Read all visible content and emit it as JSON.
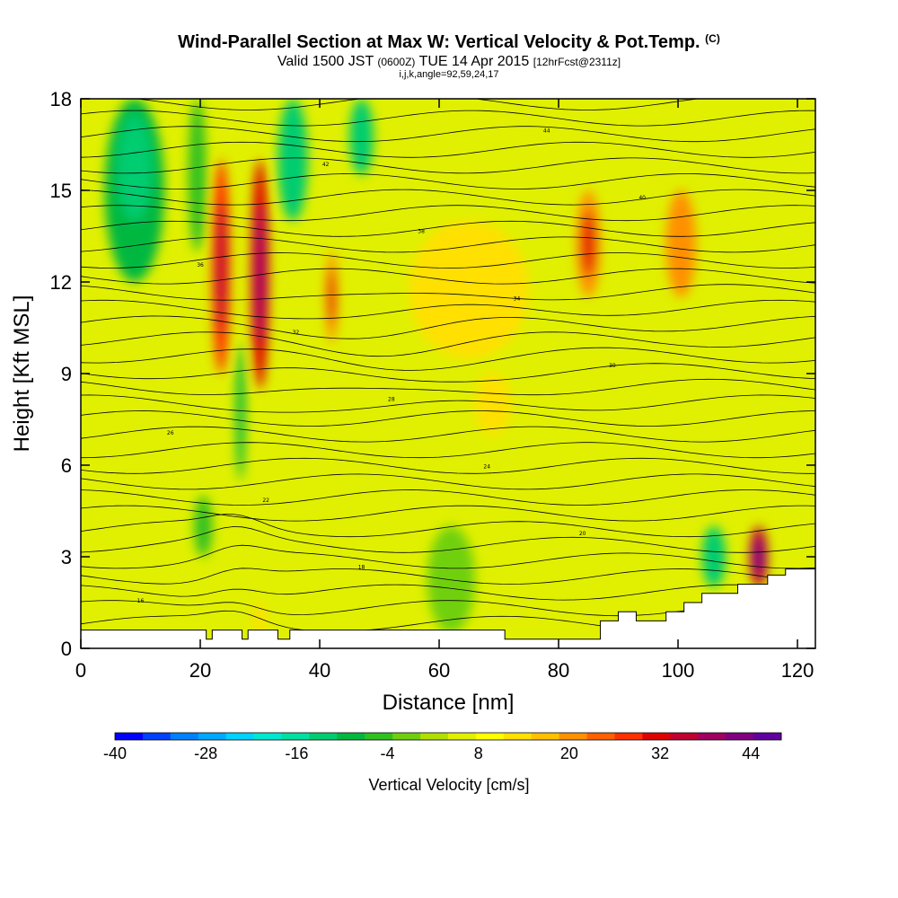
{
  "header": {
    "title": "Wind-Parallel Section at Max W: Vertical Velocity & Pot.Temp.",
    "title_mark": "(C)",
    "valid_prefix": "Valid 1500 JST",
    "valid_utc": "(0600Z)",
    "valid_date": "TUE 14 Apr 2015",
    "forecast": "[12hrFcst@2311z]",
    "indices": "i,j,k,angle=92,59,24,17"
  },
  "chart_data": {
    "type": "heatmap",
    "xlabel": "Distance [nm]",
    "ylabel": "Height [Kft MSL]",
    "xlim": [
      0,
      123
    ],
    "ylim": [
      0,
      18
    ],
    "x_ticks": [
      0,
      20,
      40,
      60,
      80,
      100,
      120
    ],
    "y_ticks": [
      0,
      3,
      6,
      9,
      12,
      15,
      18
    ],
    "background_w": 4,
    "w_cells": [
      {
        "x": [
          4,
          14
        ],
        "y": [
          12,
          18
        ],
        "w": -9
      },
      {
        "x": [
          6,
          12
        ],
        "y": [
          14,
          17.5
        ],
        "w": -13
      },
      {
        "x": [
          18,
          21
        ],
        "y": [
          13,
          18
        ],
        "w": -6
      },
      {
        "x": [
          33,
          38
        ],
        "y": [
          14,
          18
        ],
        "w": -14
      },
      {
        "x": [
          45,
          49
        ],
        "y": [
          15.5,
          18
        ],
        "w": -14
      },
      {
        "x": [
          26,
          27.5
        ],
        "y": [
          5.5,
          10
        ],
        "w": -10
      },
      {
        "x": [
          19,
          22
        ],
        "y": [
          3,
          5
        ],
        "w": -7
      },
      {
        "x": [
          104,
          108
        ],
        "y": [
          2,
          4
        ],
        "w": -12
      },
      {
        "x": [
          22,
          25
        ],
        "y": [
          9,
          16
        ],
        "w": 28
      },
      {
        "x": [
          28.5,
          31.5
        ],
        "y": [
          8.5,
          16
        ],
        "w": 32
      },
      {
        "x": [
          41,
          43
        ],
        "y": [
          10,
          13
        ],
        "w": 22
      },
      {
        "x": [
          55,
          75
        ],
        "y": [
          9.5,
          14
        ],
        "w": 14
      },
      {
        "x": [
          83,
          87
        ],
        "y": [
          11.5,
          15
        ],
        "w": 22
      },
      {
        "x": [
          98,
          103
        ],
        "y": [
          11.5,
          15
        ],
        "w": 20
      },
      {
        "x": [
          112,
          115
        ],
        "y": [
          2,
          4
        ],
        "w": 34
      },
      {
        "x": [
          29,
          31
        ],
        "y": [
          0.5,
          1.5
        ],
        "w": 14
      },
      {
        "x": [
          66,
          72
        ],
        "y": [
          7,
          9
        ],
        "w": 12
      },
      {
        "x": [
          58,
          66
        ],
        "y": [
          0.5,
          4
        ],
        "w": -3
      }
    ],
    "theta_levels": [
      12,
      14,
      16,
      18,
      20,
      22,
      24,
      26,
      28,
      30,
      32,
      34,
      36,
      38,
      40,
      42,
      44
    ],
    "theta_label_values": [
      "16",
      "18",
      "20",
      "22",
      "24",
      "26",
      "28",
      "30",
      "32",
      "34",
      "36",
      "38",
      "40",
      "42",
      "44"
    ],
    "terrain": {
      "x": [
        0,
        7,
        7,
        21,
        21,
        22,
        22,
        23,
        23,
        27,
        27,
        28,
        28,
        33,
        33,
        35,
        35,
        71,
        71,
        87,
        87,
        90,
        90,
        93,
        93,
        98,
        98,
        101,
        101,
        104,
        104,
        110,
        110,
        115,
        115,
        118,
        118,
        123
      ],
      "y": [
        0.6,
        0.6,
        0.6,
        0.6,
        0.3,
        0.3,
        0.6,
        0.6,
        0.6,
        0.6,
        0.3,
        0.3,
        0.6,
        0.6,
        0.3,
        0.3,
        0.6,
        0.6,
        0.3,
        0.3,
        0.9,
        0.9,
        1.2,
        1.2,
        0.9,
        0.9,
        1.2,
        1.2,
        1.5,
        1.5,
        1.8,
        1.8,
        2.1,
        2.1,
        2.4,
        2.4,
        2.6,
        2.6
      ]
    }
  },
  "colorbar": {
    "title": "Vertical Velocity [cm/s]",
    "tick_labels": [
      "-40",
      "-28",
      "-16",
      "-4",
      "8",
      "20",
      "32",
      "44"
    ],
    "tick_values": [
      -40,
      -28,
      -16,
      -4,
      8,
      20,
      32,
      44
    ],
    "range": [
      -40,
      48
    ],
    "colors": [
      "#0000ff",
      "#0040ff",
      "#0080ff",
      "#00a8ff",
      "#00d2ff",
      "#00e8d0",
      "#00e0a0",
      "#00cc70",
      "#00b840",
      "#30c020",
      "#70d010",
      "#b0e000",
      "#e0f000",
      "#ffff00",
      "#ffe000",
      "#ffc000",
      "#ff9000",
      "#ff6000",
      "#ff3000",
      "#e00000",
      "#c00030",
      "#a00060",
      "#800080",
      "#6000a0"
    ]
  }
}
